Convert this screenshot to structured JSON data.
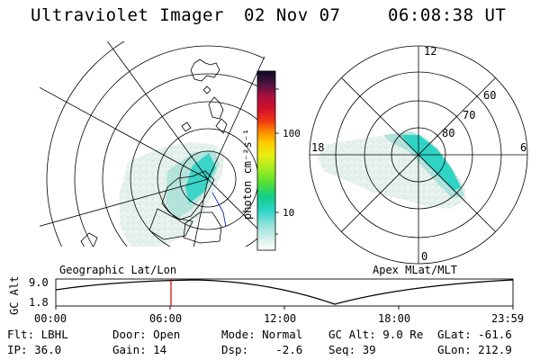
{
  "header": {
    "title": "Ultraviolet Imager",
    "date": "02 Nov 07",
    "time": "06:08:38 UT"
  },
  "colorbar": {
    "unit_label": "photon cm⁻²s⁻¹",
    "ticks": [
      "100",
      "10"
    ]
  },
  "left_panel": {
    "caption": "Geographic Lat/Lon"
  },
  "right_panel": {
    "caption": "Apex MLat/MLT",
    "mlt_labels": [
      "12",
      "18",
      "6",
      "0"
    ],
    "lat_labels": [
      "60",
      "70",
      "80"
    ]
  },
  "orbit_plot": {
    "ylabel": "GC Alt",
    "yticks": [
      "9.0",
      "1.8"
    ],
    "xticks": [
      "00:00",
      "06:00",
      "12:00",
      "18:00",
      "23:59"
    ],
    "marker_time": "06:08:38"
  },
  "info": {
    "filter": "Flt: LBHL",
    "ip": "IP: 36.0",
    "door": "Door: Open",
    "gain": "Gain: 14",
    "mode": "Mode: Normal",
    "dsp": "Dsp:    -2.6",
    "gc_alt": "GC Alt: 9.0 Re",
    "seq": "Seq: 39",
    "glat": "GLat: -61.6",
    "glon": "GLon: 212.9"
  },
  "colors": {
    "aurora_dim": "#c8e4dc",
    "aurora_mid": "#8fd6cc",
    "aurora_bright": "#2ed6cc",
    "marker": "#d00000"
  }
}
